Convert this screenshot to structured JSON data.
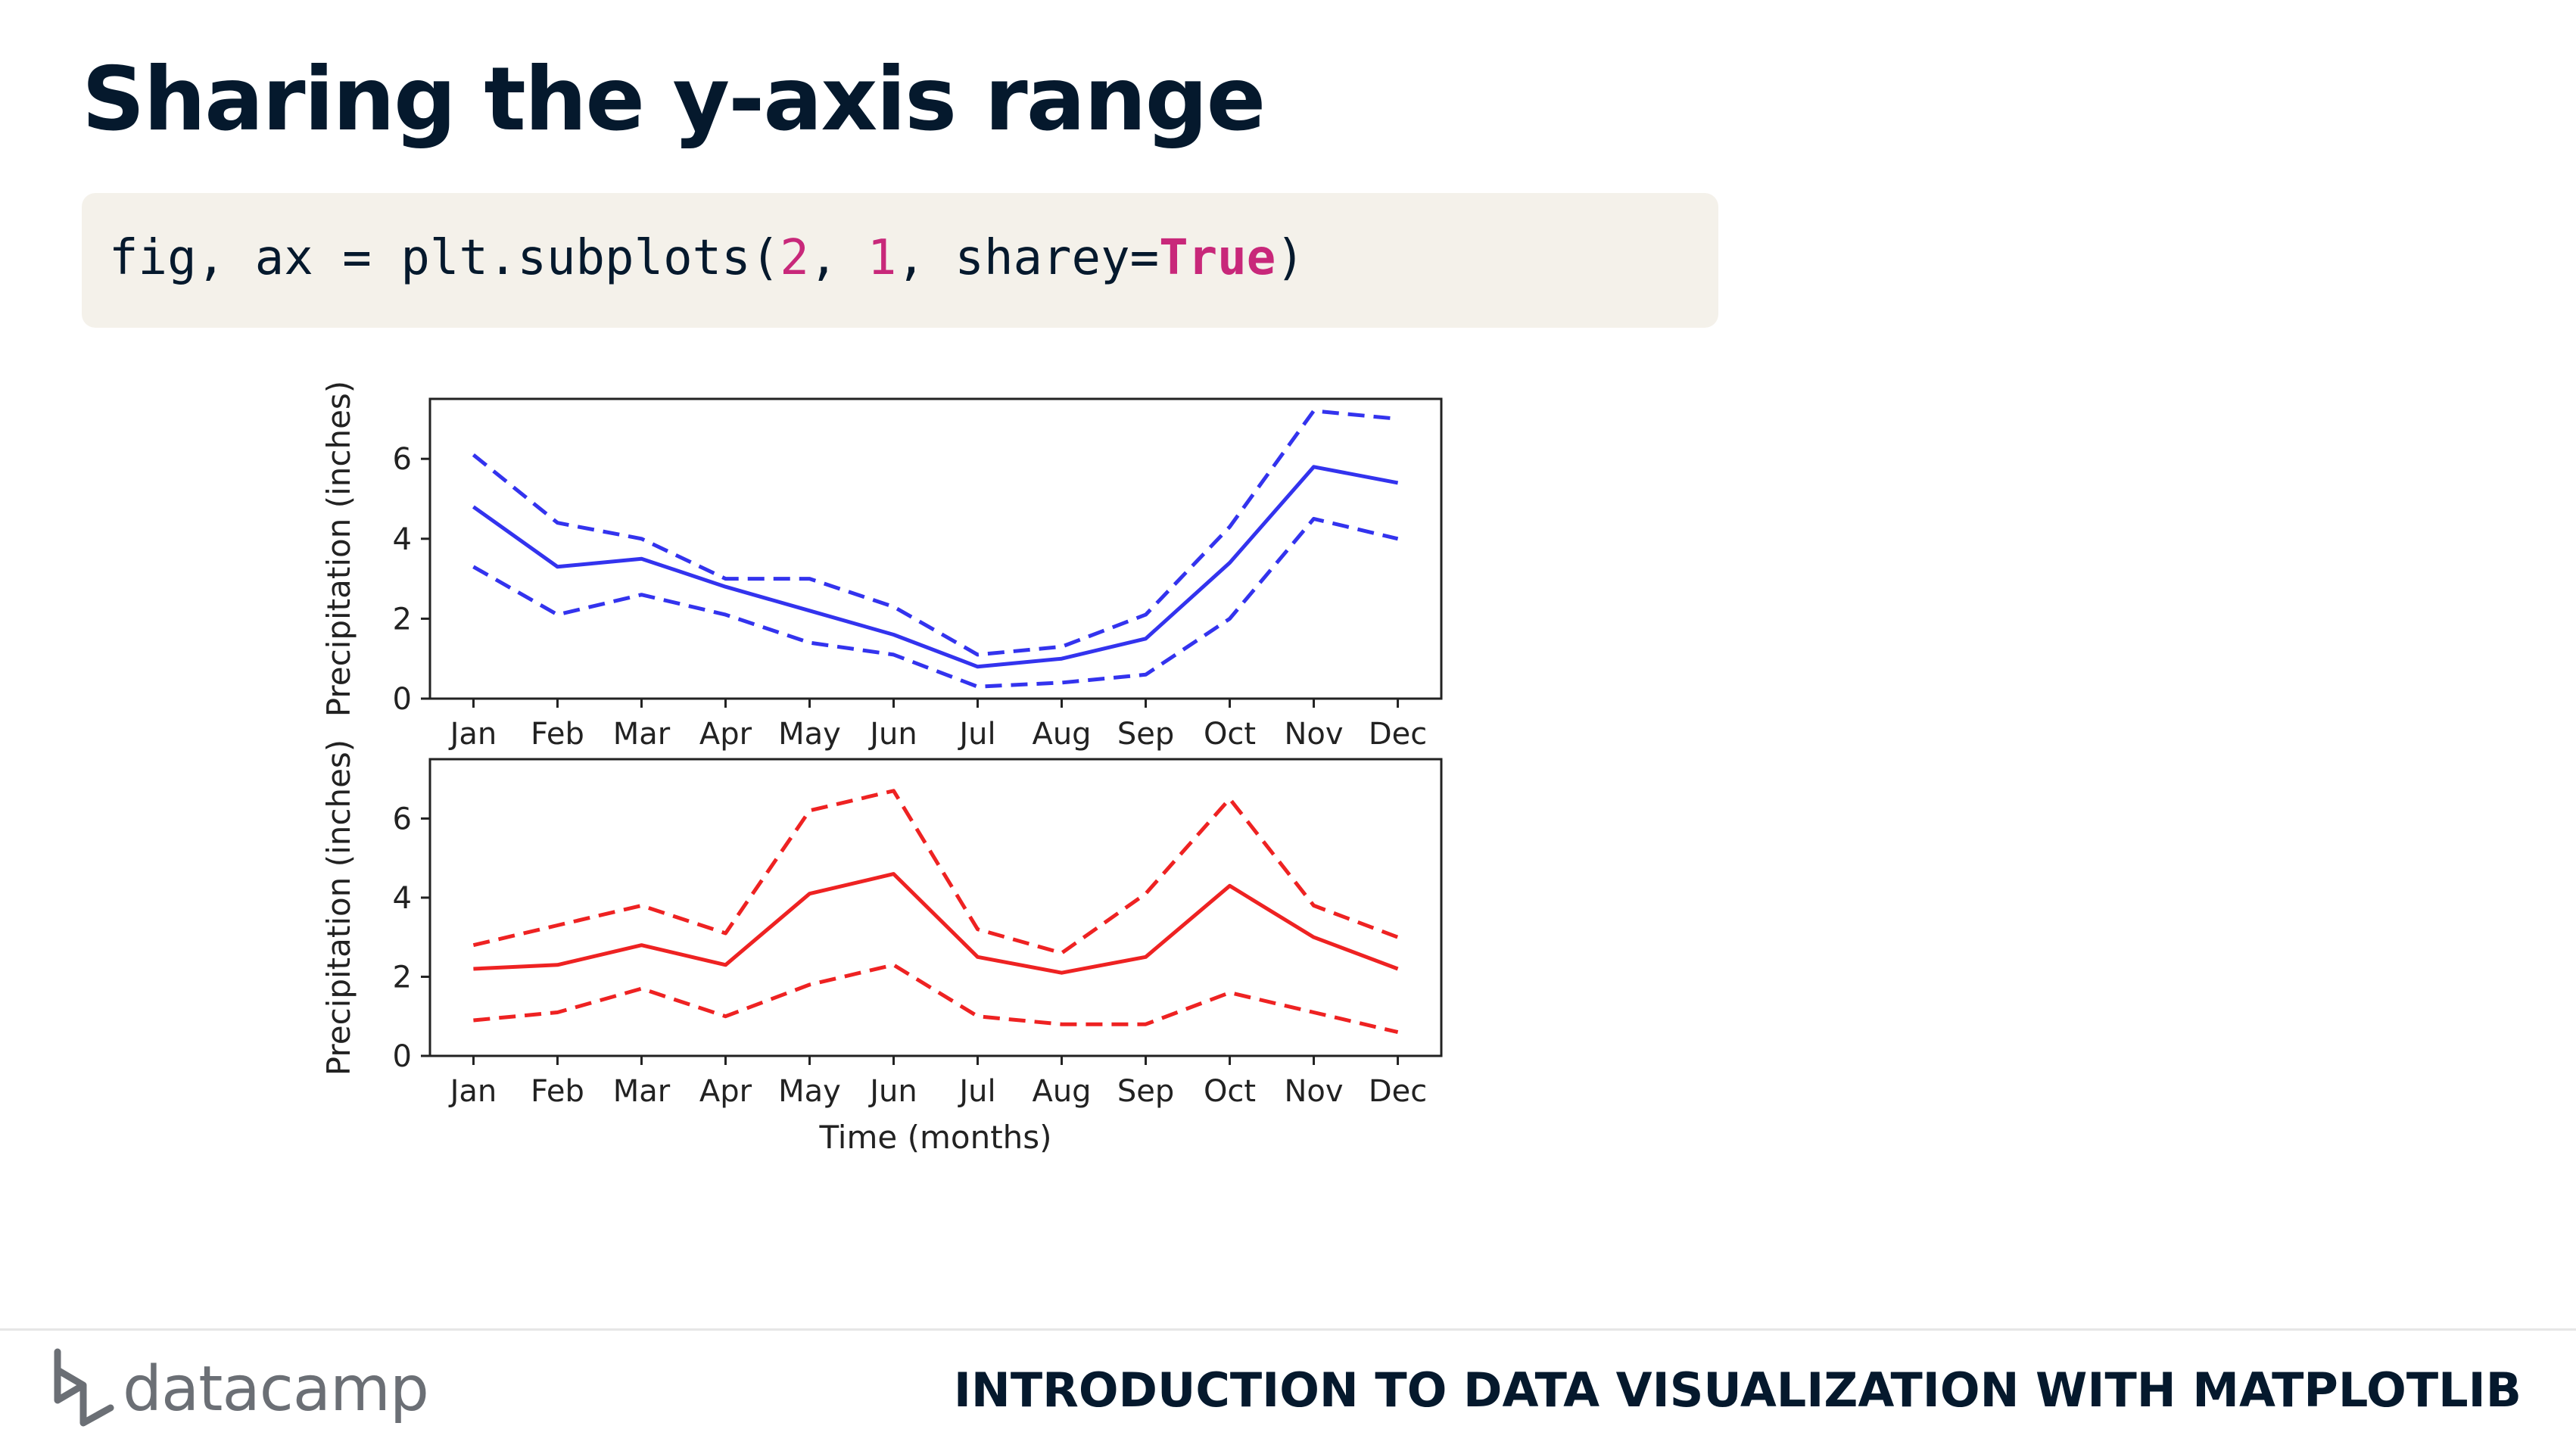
{
  "slide": {
    "title": "Sharing the y-axis range",
    "code": {
      "prefix": "fig, ax = plt.subplots(",
      "arg1": "2",
      "sep1": ", ",
      "arg2": "1",
      "sep2": ", sharey=",
      "kw": "True",
      "suffix": ")"
    }
  },
  "footer": {
    "logo_text": "datacamp",
    "course_title": "INTRODUCTION TO DATA VISUALIZATION WITH MATPLOTLIB"
  },
  "chart_data": [
    {
      "type": "line",
      "categories": [
        "Jan",
        "Feb",
        "Mar",
        "Apr",
        "May",
        "Jun",
        "Jul",
        "Aug",
        "Sep",
        "Oct",
        "Nov",
        "Dec"
      ],
      "ylabel": "Precipitation (inches)",
      "xlabel": "",
      "ylim": [
        0,
        7.5
      ],
      "yticks": [
        0,
        2,
        4,
        6
      ],
      "color": "#3333ee",
      "series": [
        {
          "style": "solid",
          "values": [
            4.8,
            3.3,
            3.5,
            2.8,
            2.2,
            1.6,
            0.8,
            1.0,
            1.5,
            3.4,
            5.8,
            5.4
          ]
        },
        {
          "style": "dashed",
          "values": [
            6.1,
            4.4,
            4.0,
            3.0,
            3.0,
            2.3,
            1.1,
            1.3,
            2.1,
            4.3,
            7.2,
            7.0
          ]
        },
        {
          "style": "dashed",
          "values": [
            3.3,
            2.1,
            2.6,
            2.1,
            1.4,
            1.1,
            0.3,
            0.4,
            0.6,
            2.0,
            4.5,
            4.0
          ]
        }
      ]
    },
    {
      "type": "line",
      "categories": [
        "Jan",
        "Feb",
        "Mar",
        "Apr",
        "May",
        "Jun",
        "Jul",
        "Aug",
        "Sep",
        "Oct",
        "Nov",
        "Dec"
      ],
      "ylabel": "Precipitation (inches)",
      "xlabel": "Time (months)",
      "ylim": [
        0,
        7.5
      ],
      "yticks": [
        0,
        2,
        4,
        6
      ],
      "color": "#ee2222",
      "series": [
        {
          "style": "solid",
          "values": [
            2.2,
            2.3,
            2.8,
            2.3,
            4.1,
            4.6,
            2.5,
            2.1,
            2.5,
            4.3,
            3.0,
            2.2
          ]
        },
        {
          "style": "dashed",
          "values": [
            2.8,
            3.3,
            3.8,
            3.1,
            6.2,
            6.7,
            3.2,
            2.6,
            4.1,
            6.5,
            3.8,
            3.0
          ]
        },
        {
          "style": "dashed",
          "values": [
            0.9,
            1.1,
            1.7,
            1.0,
            1.8,
            2.3,
            1.0,
            0.8,
            0.8,
            1.6,
            1.1,
            0.6
          ]
        }
      ]
    }
  ]
}
